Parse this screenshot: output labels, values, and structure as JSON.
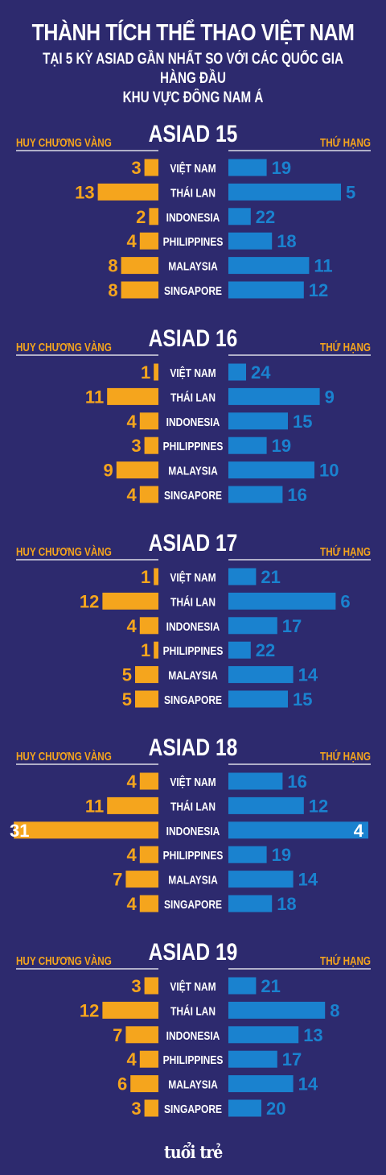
{
  "title": "THÀNH TÍCH THỂ THAO VIỆT NAM",
  "subtitle_line1": "TẠI 5 KỲ ASIAD GẦN NHẤT SO VỚI CÁC QUỐC GIA HÀNG ĐẦU",
  "subtitle_line2": "KHU VỰC ĐÔNG NAM Á",
  "colors": {
    "background": "#2d2a6e",
    "gold": "#f5a51d",
    "rank": "#1a82cf",
    "white": "#ffffff"
  },
  "logo": "tuổi trẻ",
  "chart_data": [
    {
      "type": "bar",
      "title": "ASIAD 15",
      "left_label": "HUY CHƯƠNG VÀNG",
      "right_label": "THỨ HẠNG",
      "categories": [
        "VIỆT NAM",
        "THÁI LAN",
        "INDONESIA",
        "PHILIPPINES",
        "MALAYSIA",
        "SINGAPORE"
      ],
      "series": [
        {
          "name": "HUY CHƯƠNG VÀNG",
          "values": [
            3,
            13,
            2,
            4,
            8,
            8
          ]
        },
        {
          "name": "THỨ HẠNG",
          "values": [
            19,
            5,
            22,
            18,
            11,
            12
          ]
        }
      ]
    },
    {
      "type": "bar",
      "title": "ASIAD 16",
      "left_label": "HUY CHƯƠNG VÀNG",
      "right_label": "THỨ HẠNG",
      "categories": [
        "VIỆT NAM",
        "THÁI LAN",
        "INDONESIA",
        "PHILIPPINES",
        "MALAYSIA",
        "SINGAPORE"
      ],
      "series": [
        {
          "name": "HUY CHƯƠNG VÀNG",
          "values": [
            1,
            11,
            4,
            3,
            9,
            4
          ]
        },
        {
          "name": "THỨ HẠNG",
          "values": [
            24,
            9,
            15,
            19,
            10,
            16
          ]
        }
      ]
    },
    {
      "type": "bar",
      "title": "ASIAD 17",
      "left_label": "HUY CHƯƠNG VÀNG",
      "right_label": "THỨ HẠNG",
      "categories": [
        "VIỆT NAM",
        "THÁI LAN",
        "INDONESIA",
        "PHILIPPINES",
        "MALAYSIA",
        "SINGAPORE"
      ],
      "series": [
        {
          "name": "HUY CHƯƠNG VÀNG",
          "values": [
            1,
            12,
            4,
            1,
            5,
            5
          ]
        },
        {
          "name": "THỨ HẠNG",
          "values": [
            21,
            6,
            17,
            22,
            14,
            15
          ]
        }
      ]
    },
    {
      "type": "bar",
      "title": "ASIAD 18",
      "left_label": "HUY CHƯƠNG VÀNG",
      "right_label": "THỨ HẠNG",
      "categories": [
        "VIỆT NAM",
        "THÁI LAN",
        "INDONESIA",
        "PHILIPPINES",
        "MALAYSIA",
        "SINGAPORE"
      ],
      "series": [
        {
          "name": "HUY CHƯƠNG VÀNG",
          "values": [
            4,
            11,
            31,
            4,
            7,
            4
          ]
        },
        {
          "name": "THỨ HẠNG",
          "values": [
            16,
            12,
            4,
            19,
            14,
            18
          ]
        }
      ]
    },
    {
      "type": "bar",
      "title": "ASIAD 19",
      "left_label": "HUY CHƯƠNG VÀNG",
      "right_label": "THỨ HẠNG",
      "categories": [
        "VIỆT NAM",
        "THÁI LAN",
        "INDONESIA",
        "PHILIPPINES",
        "MALAYSIA",
        "SINGAPORE"
      ],
      "series": [
        {
          "name": "HUY CHƯƠNG VÀNG",
          "values": [
            3,
            12,
            7,
            4,
            6,
            3
          ]
        },
        {
          "name": "THỨ HẠNG",
          "values": [
            21,
            8,
            13,
            17,
            14,
            20
          ]
        }
      ]
    }
  ]
}
